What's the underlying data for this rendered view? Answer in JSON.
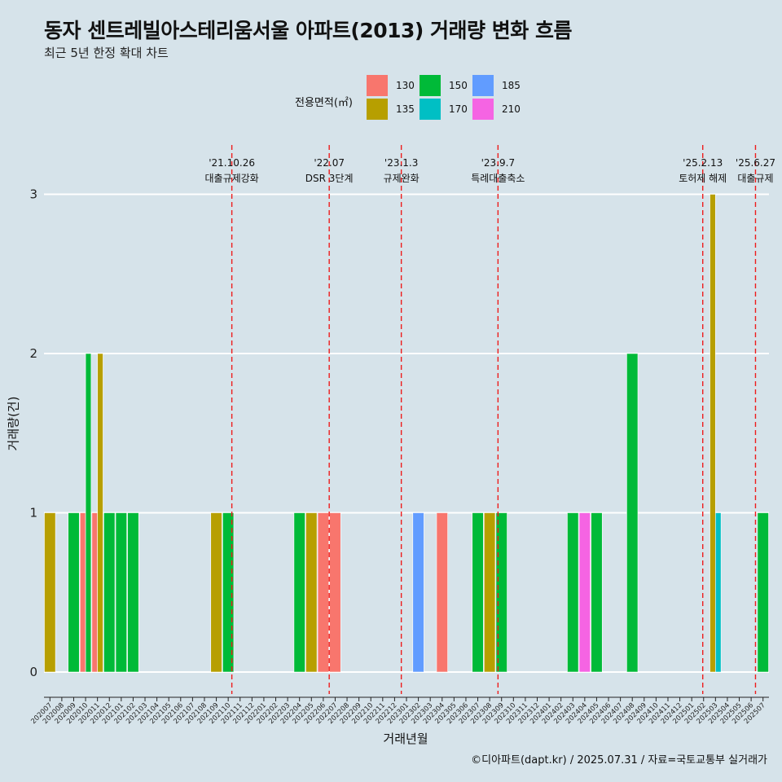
{
  "title": "동자 센트레빌아스테리움서울 아파트(2013) 거래량 변화 흐름",
  "subtitle": "최근 5년 한정 확대 차트",
  "caption": "©디아파트(dapt.kr) / 2025.07.31 / 자료=국토교통부 실거래가",
  "colors": {
    "background": "#d6e3ea",
    "grid": "#ffffff",
    "event_line": "#ee1c1c",
    "130": "#f8766d",
    "135": "#b79f00",
    "150": "#00ba38",
    "170": "#00bfc4",
    "185": "#619cff",
    "210": "#f564e3"
  },
  "chart_data": {
    "type": "bar",
    "stacked": false,
    "xlabel": "거래년월",
    "ylabel": "거래량(건)",
    "ylim": [
      0,
      3
    ],
    "yticks": [
      0,
      1,
      2,
      3
    ],
    "grid": "horizontal",
    "legend_title": "전용면적(㎡)",
    "legend_position": "top",
    "categories": [
      "202007",
      "202008",
      "202009",
      "202010",
      "202011",
      "202012",
      "202101",
      "202102",
      "202103",
      "202104",
      "202105",
      "202106",
      "202107",
      "202108",
      "202109",
      "202110",
      "202111",
      "202112",
      "202201",
      "202202",
      "202203",
      "202204",
      "202205",
      "202206",
      "202207",
      "202208",
      "202209",
      "202210",
      "202211",
      "202212",
      "202301",
      "202302",
      "202303",
      "202304",
      "202305",
      "202306",
      "202307",
      "202308",
      "202309",
      "202310",
      "202311",
      "202312",
      "202401",
      "202402",
      "202403",
      "202404",
      "202405",
      "202406",
      "202407",
      "202408",
      "202409",
      "202410",
      "202411",
      "202412",
      "202501",
      "202502",
      "202503",
      "202504",
      "202505",
      "202506",
      "202507"
    ],
    "series": [
      {
        "name": "130",
        "points": [
          {
            "x": "202010",
            "y": 1
          },
          {
            "x": "202011",
            "y": 1
          },
          {
            "x": "202206",
            "y": 1
          },
          {
            "x": "202207",
            "y": 1
          },
          {
            "x": "202304",
            "y": 1
          }
        ]
      },
      {
        "name": "135",
        "points": [
          {
            "x": "202007",
            "y": 1
          },
          {
            "x": "202011",
            "y": 2
          },
          {
            "x": "202109",
            "y": 1
          },
          {
            "x": "202205",
            "y": 1
          },
          {
            "x": "202308",
            "y": 1
          },
          {
            "x": "202503",
            "y": 3
          }
        ]
      },
      {
        "name": "150",
        "points": [
          {
            "x": "202009",
            "y": 1
          },
          {
            "x": "202010",
            "y": 2
          },
          {
            "x": "202012",
            "y": 1
          },
          {
            "x": "202101",
            "y": 1
          },
          {
            "x": "202102",
            "y": 1
          },
          {
            "x": "202110",
            "y": 1
          },
          {
            "x": "202204",
            "y": 1
          },
          {
            "x": "202307",
            "y": 1
          },
          {
            "x": "202309",
            "y": 1
          },
          {
            "x": "202403",
            "y": 1
          },
          {
            "x": "202405",
            "y": 1
          },
          {
            "x": "202408",
            "y": 2
          },
          {
            "x": "202507",
            "y": 1
          }
        ]
      },
      {
        "name": "170",
        "points": [
          {
            "x": "202503",
            "y": 1
          }
        ]
      },
      {
        "name": "185",
        "points": [
          {
            "x": "202302",
            "y": 1
          }
        ]
      },
      {
        "name": "210",
        "points": [
          {
            "x": "202404",
            "y": 1
          }
        ]
      }
    ],
    "annotations": [
      {
        "x": "2021-10-26",
        "date_label": "'21.10.26",
        "text": "대출규제강화"
      },
      {
        "x": "2022-07-01",
        "date_label": "'22.07",
        "text": "DSR 3단계"
      },
      {
        "x": "2023-01-03",
        "date_label": "'23.1.3",
        "text": "규제완화"
      },
      {
        "x": "2023-09-07",
        "date_label": "'23.9.7",
        "text": "특례대출축소"
      },
      {
        "x": "2025-02-13",
        "date_label": "'25.2.13",
        "text": "토허제 해제"
      },
      {
        "x": "2025-06-27",
        "date_label": "'25.6.27",
        "text": "대출규제"
      }
    ]
  }
}
